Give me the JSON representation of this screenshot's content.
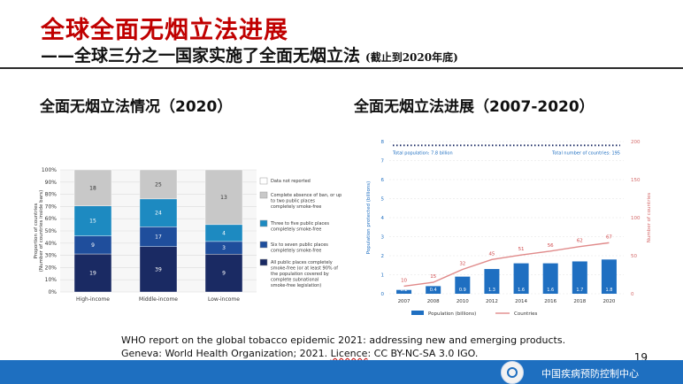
{
  "header": {
    "title": "全球全面无烟立法进展",
    "subtitle": "——全球三分之一国家实施了全面无烟立法",
    "subtitle_note": "(截止到2020年底)"
  },
  "left_section": {
    "title": "全面无烟立法情况（2020）"
  },
  "right_section": {
    "title": "全面无烟立法进展（2007-2020）"
  },
  "colors": {
    "not_reported": "#ffffff",
    "absence": "#c8c8c8",
    "three_to_five": "#1d8ac1",
    "six_to_seven": "#1f4e9c",
    "all_public": "#1a2a63",
    "population_bar": "#1f6fc1",
    "countries_line": "#e08a8a",
    "dotted_line": "#1a2a63",
    "title_red": "#c00000",
    "footer_blue": "#1e6fc0"
  },
  "chart_data": [
    {
      "type": "bar",
      "stacked": true,
      "categories": [
        "High-income",
        "Middle-income",
        "Low-income"
      ],
      "ylabel": "Proportion of countries (Number of countries inside bars)",
      "yticks": [
        "0%",
        "10%",
        "20%",
        "30%",
        "40%",
        "50%",
        "60%",
        "70%",
        "80%",
        "90%",
        "100%"
      ],
      "ylim": [
        0,
        100
      ],
      "series": [
        {
          "name": "All public places completely smoke-free (or at least 90% of the population covered by complete subnational smoke-free legislation)",
          "values": [
            19,
            39,
            9
          ],
          "color_key": "all_public"
        },
        {
          "name": "Six to seven public places completely smoke-free",
          "values": [
            9,
            17,
            3
          ],
          "color_key": "six_to_seven"
        },
        {
          "name": "Three to five public places completely smoke-free",
          "values": [
            15,
            24,
            4
          ],
          "color_key": "three_to_five"
        },
        {
          "name": "Complete absence of ban, or up to two public places completely smoke-free",
          "values": [
            18,
            25,
            13
          ],
          "color_key": "absence"
        },
        {
          "name": "Data not reported",
          "values": [
            0,
            0,
            0
          ],
          "color_key": "not_reported"
        }
      ],
      "legend": [
        "Data not reported",
        "Complete absence of ban, or up to two public places completely smoke-free",
        "Three to five public places completely smoke-free",
        "Six to seven public places completely smoke-free",
        "All public places completely smoke-free (or at least 90% of the population covered by complete subnational smoke-free legislation)"
      ],
      "legend_position": "right"
    },
    {
      "type": "bar",
      "categories": [
        "2007",
        "2008",
        "2010",
        "2012",
        "2014",
        "2016",
        "2018",
        "2020"
      ],
      "series": [
        {
          "name": "Population (billions)",
          "type": "bar",
          "axis": "left",
          "values": [
            0.2,
            0.4,
            0.9,
            1.3,
            1.6,
            1.6,
            1.7,
            1.8
          ]
        },
        {
          "name": "Countries",
          "type": "line",
          "axis": "right",
          "values": [
            10,
            15,
            32,
            45,
            51,
            56,
            62,
            67
          ]
        }
      ],
      "ylabel": "Population protected (billions)",
      "y2label": "Number of countries",
      "yticks": [
        "0",
        "1",
        "2",
        "3",
        "4",
        "5",
        "6",
        "7",
        "8"
      ],
      "y2ticks": [
        "0",
        "50",
        "100",
        "150",
        "200"
      ],
      "ylim": [
        0,
        8
      ],
      "y2lim": [
        0,
        200
      ],
      "reference_line": {
        "value": 7.8,
        "left_label": "Total population: 7.8 billion",
        "right_label": "Total number of countries: 195"
      },
      "legend": [
        "Population (billions)",
        "Countries"
      ],
      "legend_position": "bottom"
    }
  ],
  "citation": {
    "line1": "WHO report on the global tobacco epidemic 2021: addressing new and emerging products.",
    "line2_a": "Geneva: World Health Organization; 2021. ",
    "line2_b": "Licence",
    "line2_c": ": CC BY-NC-SA 3.0 IGO."
  },
  "page_number": "19",
  "footer": {
    "org_name": "中国疾病预防控制中心"
  }
}
